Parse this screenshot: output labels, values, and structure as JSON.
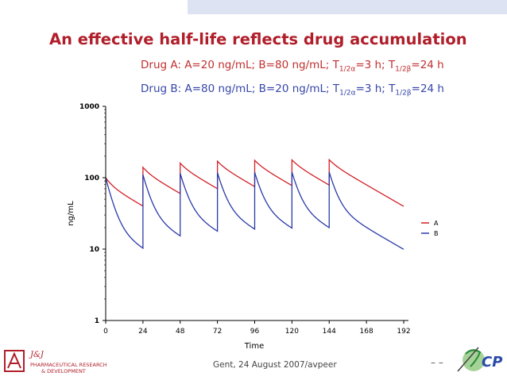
{
  "title": "An effective half-life reflects drug accumulation",
  "drug_a_line": {
    "prefix": "Drug A: A=20 ng/mL; B=80 ng/mL; T",
    "sub1": "1/2α",
    "mid": "=3 h; T",
    "sub2": "1/2β",
    "suffix": "=24 h"
  },
  "drug_b_line": {
    "prefix": "Drug B: A=80 ng/mL; B=20 ng/mL; T",
    "sub1": "1/2α",
    "mid": "=3 h; T",
    "sub2": "1/2β",
    "suffix": "=24 h"
  },
  "footer": {
    "text": "Gent, 24 August 2007/avpeer",
    "dash": "– –"
  },
  "logos": {
    "left_text_1": "PHARMACEUTICAL RESEARCH",
    "left_text_2": "& DEVELOPMENT",
    "right_text": "CP"
  },
  "colors": {
    "title": "#b01e2a",
    "series_a": "#d22027",
    "series_b": "#2a3aa8"
  },
  "chart_data": {
    "type": "line",
    "xlabel": "Time",
    "ylabel": "ng/mL",
    "xlim": [
      0,
      192
    ],
    "ylim": [
      1,
      1000
    ],
    "yscale": "log",
    "x_ticks": [
      0,
      24,
      48,
      72,
      96,
      120,
      144,
      168,
      192
    ],
    "y_ticks": [
      {
        "value": 1,
        "label": "1"
      },
      {
        "value": 10,
        "label": "10"
      },
      {
        "value": 100,
        "label": "100"
      },
      {
        "value": 1000,
        "label": "1000"
      }
    ],
    "dosing_interval_h": 24,
    "doses": 7,
    "legend_position": "right",
    "series": [
      {
        "name": "A",
        "A": 20,
        "B": 80,
        "t_half_alpha": 3,
        "t_half_beta": 24,
        "color": "#d22027"
      },
      {
        "name": "B",
        "A": 80,
        "B": 20,
        "t_half_alpha": 3,
        "t_half_beta": 24,
        "color": "#2a3aa8"
      }
    ]
  }
}
